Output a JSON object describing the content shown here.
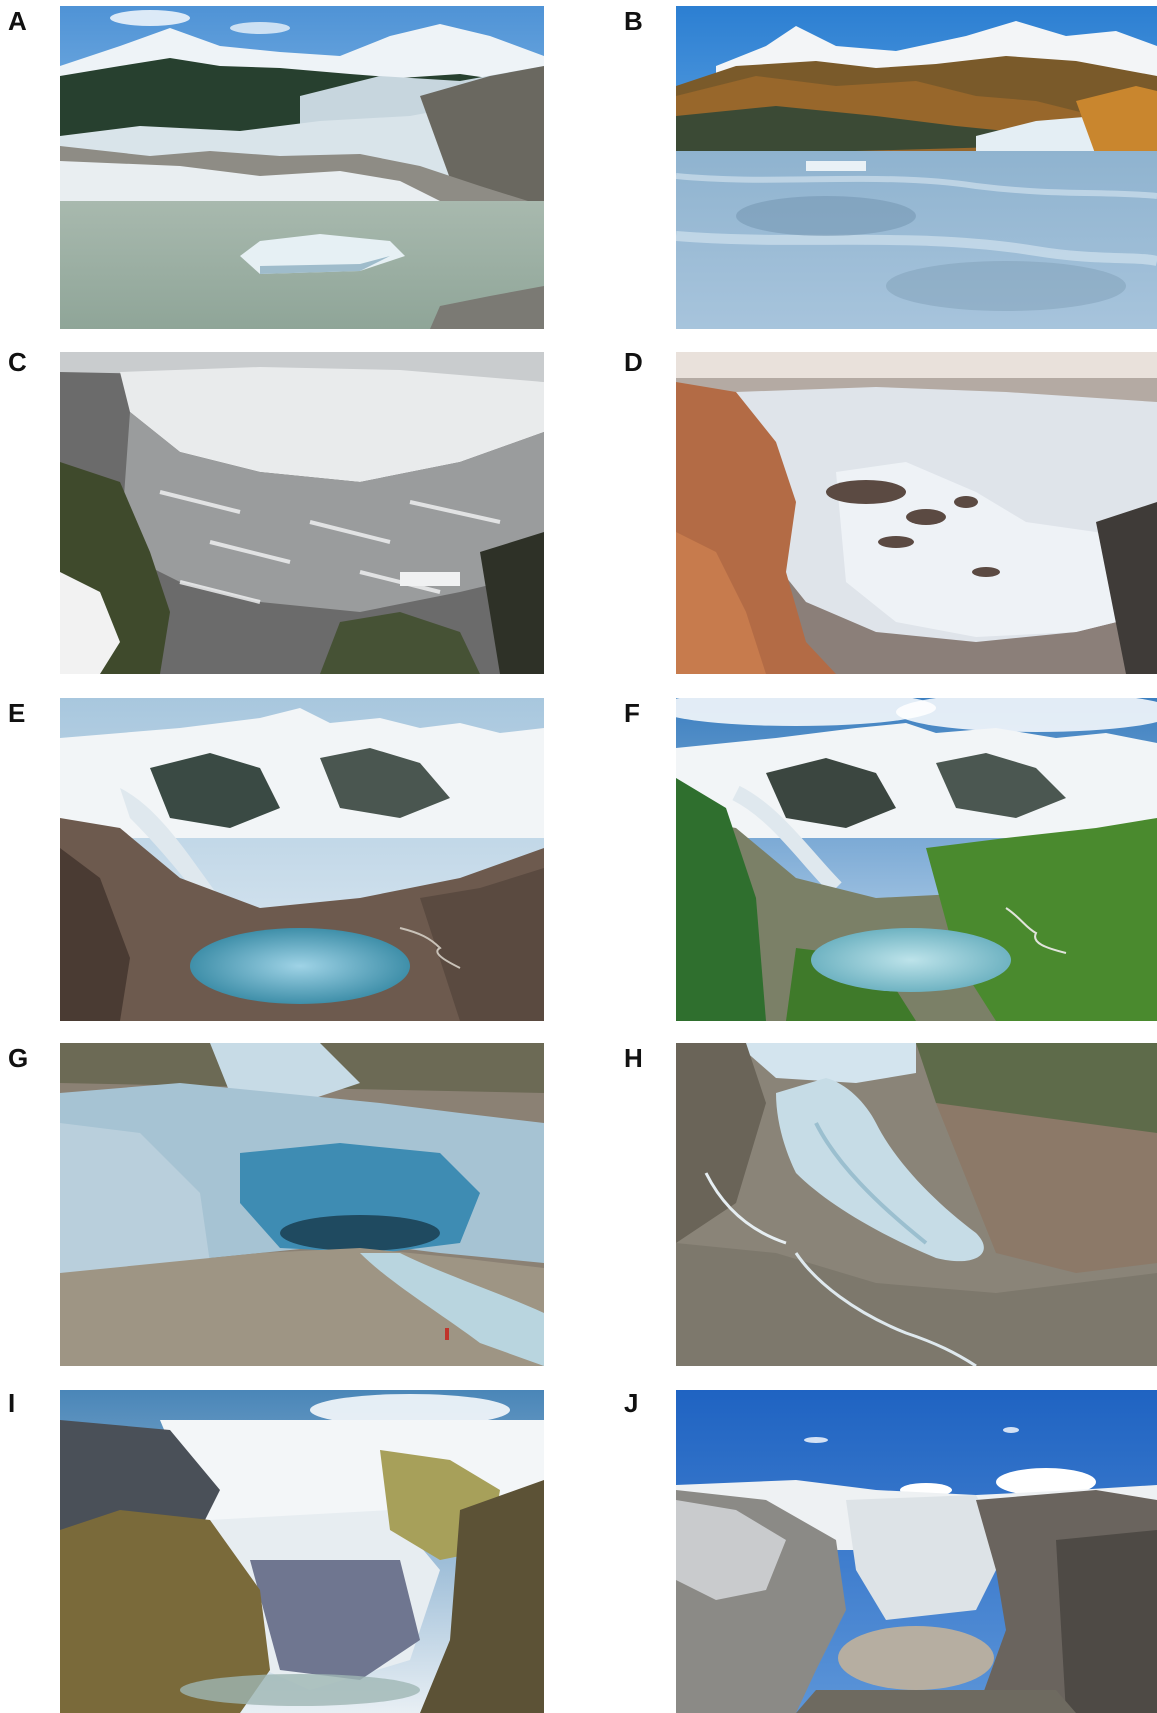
{
  "figure": {
    "panels": [
      {
        "id": "A",
        "label": "A",
        "scene": "glacier-terminus-lake-with-iceberg"
      },
      {
        "id": "B",
        "label": "B",
        "scene": "frozen-lake-below-glacier-sunset"
      },
      {
        "id": "C",
        "label": "C",
        "scene": "glacier-from-above-grayscale"
      },
      {
        "id": "D",
        "label": "D",
        "scene": "glacier-from-above-snow-cover"
      },
      {
        "id": "E",
        "label": "E",
        "scene": "valley-glacier-with-proglacial-lake"
      },
      {
        "id": "F",
        "label": "F",
        "scene": "valley-glacier-lake-green-slopes"
      },
      {
        "id": "G",
        "label": "G",
        "scene": "glacier-ice-cave-front"
      },
      {
        "id": "H",
        "label": "H",
        "scene": "retreating-glacier-tongue"
      },
      {
        "id": "I",
        "label": "I",
        "scene": "icefall-between-rock-walls"
      },
      {
        "id": "J",
        "label": "J",
        "scene": "glacier-with-turbid-lake"
      }
    ]
  }
}
